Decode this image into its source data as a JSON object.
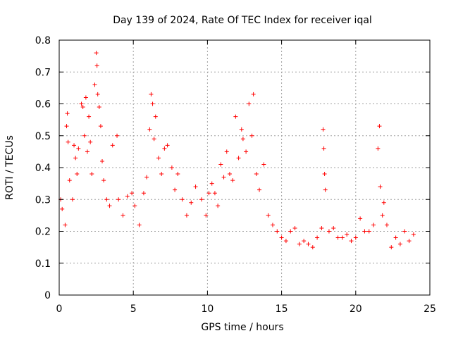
{
  "chart_data": {
    "type": "scatter",
    "title": "Day 139 of 2024, Rate Of TEC Index for receiver iqal",
    "xlabel": "GPS time / hours",
    "ylabel": "ROTI / TECUs",
    "xlim": [
      0,
      25
    ],
    "ylim": [
      0,
      0.8
    ],
    "xticks": [
      0,
      5,
      10,
      15,
      20,
      25
    ],
    "yticks": [
      0,
      0.1,
      0.2,
      0.3,
      0.4,
      0.5,
      0.6,
      0.7,
      0.8
    ],
    "xtick_labels": [
      "0",
      "5",
      "10",
      "15",
      "20",
      "25"
    ],
    "ytick_labels": [
      "0",
      "0.1",
      "0.2",
      "0.3",
      "0.4",
      "0.5",
      "0.6",
      "0.7",
      "0.8"
    ],
    "grid": true,
    "marker": "+",
    "color": "#ff0000",
    "series": [
      {
        "name": "ROTI",
        "points": [
          [
            0.1,
            0.3
          ],
          [
            0.2,
            0.27
          ],
          [
            0.4,
            0.22
          ],
          [
            0.5,
            0.53
          ],
          [
            0.55,
            0.57
          ],
          [
            0.6,
            0.48
          ],
          [
            0.7,
            0.36
          ],
          [
            0.9,
            0.3
          ],
          [
            1.0,
            0.47
          ],
          [
            1.1,
            0.43
          ],
          [
            1.2,
            0.38
          ],
          [
            1.3,
            0.46
          ],
          [
            1.5,
            0.6
          ],
          [
            1.6,
            0.59
          ],
          [
            1.7,
            0.5
          ],
          [
            1.8,
            0.62
          ],
          [
            1.9,
            0.45
          ],
          [
            2.0,
            0.56
          ],
          [
            2.1,
            0.48
          ],
          [
            2.2,
            0.38
          ],
          [
            2.4,
            0.66
          ],
          [
            2.5,
            0.76
          ],
          [
            2.55,
            0.72
          ],
          [
            2.6,
            0.63
          ],
          [
            2.7,
            0.59
          ],
          [
            2.8,
            0.53
          ],
          [
            2.9,
            0.42
          ],
          [
            3.0,
            0.36
          ],
          [
            3.2,
            0.3
          ],
          [
            3.4,
            0.28
          ],
          [
            3.6,
            0.47
          ],
          [
            3.9,
            0.5
          ],
          [
            4.0,
            0.3
          ],
          [
            4.3,
            0.25
          ],
          [
            4.6,
            0.31
          ],
          [
            4.9,
            0.32
          ],
          [
            5.1,
            0.28
          ],
          [
            5.4,
            0.22
          ],
          [
            5.7,
            0.32
          ],
          [
            5.9,
            0.37
          ],
          [
            6.1,
            0.52
          ],
          [
            6.2,
            0.63
          ],
          [
            6.3,
            0.6
          ],
          [
            6.4,
            0.49
          ],
          [
            6.5,
            0.56
          ],
          [
            6.7,
            0.43
          ],
          [
            6.9,
            0.38
          ],
          [
            7.1,
            0.46
          ],
          [
            7.3,
            0.47
          ],
          [
            7.6,
            0.4
          ],
          [
            7.8,
            0.33
          ],
          [
            8.0,
            0.38
          ],
          [
            8.3,
            0.3
          ],
          [
            8.6,
            0.25
          ],
          [
            8.9,
            0.29
          ],
          [
            9.2,
            0.34
          ],
          [
            9.6,
            0.3
          ],
          [
            9.9,
            0.25
          ],
          [
            10.1,
            0.32
          ],
          [
            10.3,
            0.35
          ],
          [
            10.5,
            0.32
          ],
          [
            10.7,
            0.28
          ],
          [
            10.9,
            0.41
          ],
          [
            11.1,
            0.37
          ],
          [
            11.3,
            0.45
          ],
          [
            11.5,
            0.38
          ],
          [
            11.7,
            0.36
          ],
          [
            11.9,
            0.56
          ],
          [
            12.1,
            0.43
          ],
          [
            12.3,
            0.52
          ],
          [
            12.4,
            0.49
          ],
          [
            12.6,
            0.45
          ],
          [
            12.8,
            0.6
          ],
          [
            13.0,
            0.5
          ],
          [
            13.1,
            0.63
          ],
          [
            13.3,
            0.38
          ],
          [
            13.5,
            0.33
          ],
          [
            13.8,
            0.41
          ],
          [
            14.1,
            0.25
          ],
          [
            14.4,
            0.22
          ],
          [
            14.7,
            0.2
          ],
          [
            15.0,
            0.18
          ],
          [
            15.3,
            0.17
          ],
          [
            15.6,
            0.2
          ],
          [
            15.9,
            0.21
          ],
          [
            16.2,
            0.16
          ],
          [
            16.5,
            0.17
          ],
          [
            16.8,
            0.16
          ],
          [
            17.1,
            0.15
          ],
          [
            17.4,
            0.18
          ],
          [
            17.7,
            0.21
          ],
          [
            17.8,
            0.52
          ],
          [
            17.85,
            0.46
          ],
          [
            17.9,
            0.38
          ],
          [
            17.95,
            0.33
          ],
          [
            18.2,
            0.2
          ],
          [
            18.5,
            0.21
          ],
          [
            18.8,
            0.18
          ],
          [
            19.1,
            0.18
          ],
          [
            19.4,
            0.19
          ],
          [
            19.7,
            0.17
          ],
          [
            20.0,
            0.18
          ],
          [
            20.3,
            0.24
          ],
          [
            20.6,
            0.2
          ],
          [
            20.9,
            0.2
          ],
          [
            21.2,
            0.22
          ],
          [
            21.5,
            0.46
          ],
          [
            21.6,
            0.53
          ],
          [
            21.65,
            0.34
          ],
          [
            21.8,
            0.25
          ],
          [
            21.9,
            0.29
          ],
          [
            22.1,
            0.22
          ],
          [
            22.4,
            0.15
          ],
          [
            22.7,
            0.18
          ],
          [
            23.0,
            0.16
          ],
          [
            23.3,
            0.2
          ],
          [
            23.6,
            0.17
          ],
          [
            23.9,
            0.19
          ]
        ]
      }
    ]
  }
}
